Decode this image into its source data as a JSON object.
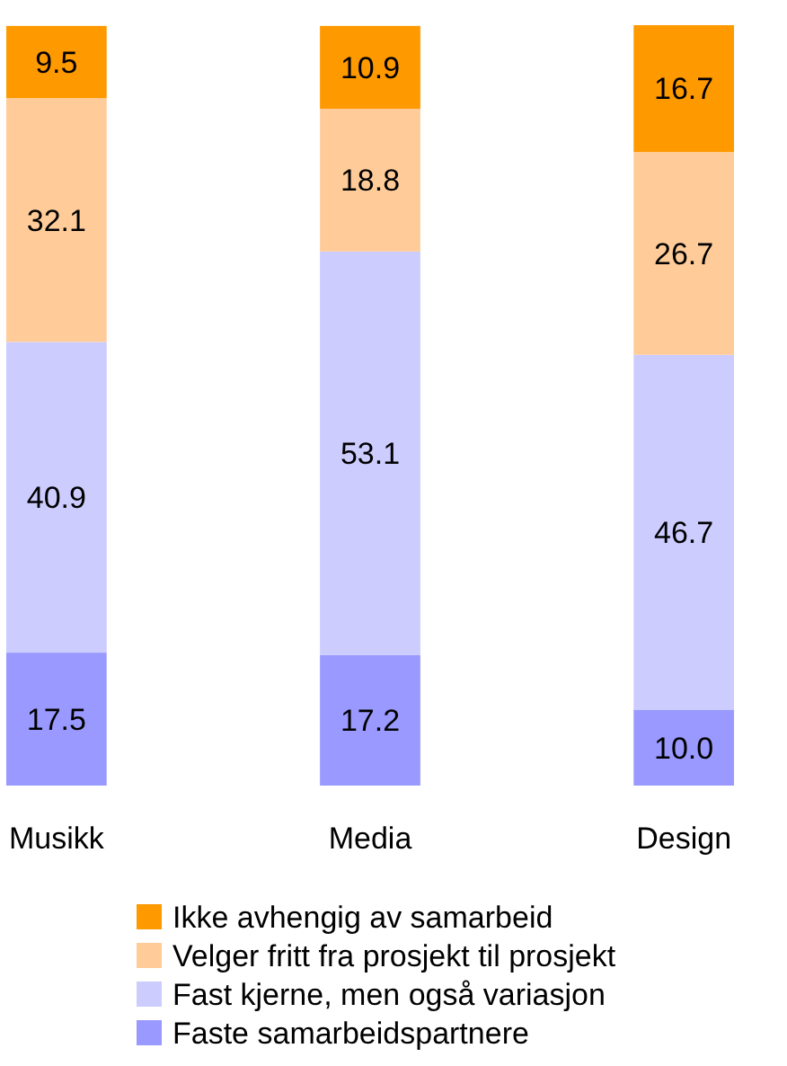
{
  "chart_data": {
    "type": "bar",
    "stacked": true,
    "data_labels": true,
    "legend": "bottom",
    "grid": false,
    "categories": [
      "Musikk",
      "Media",
      "Design"
    ],
    "series": [
      {
        "name": "Faste samarbeidspartnere",
        "color": "#9999ff",
        "values": [
          17.5,
          17.2,
          10.0
        ],
        "value_labels": [
          "17.5",
          "17.2",
          "10.0"
        ]
      },
      {
        "name": "Fast kjerne, men også variasjon",
        "color": "#ccccff",
        "values": [
          40.9,
          53.1,
          46.7
        ]
      },
      {
        "name": "Velger fritt fra prosjekt til prosjekt",
        "color": "#ffcc99",
        "values": [
          32.1,
          18.8,
          26.7
        ]
      },
      {
        "name": "Ikke avhengig av samarbeid",
        "color": "#ff9900",
        "values": [
          9.5,
          10.9,
          16.7
        ]
      }
    ]
  }
}
